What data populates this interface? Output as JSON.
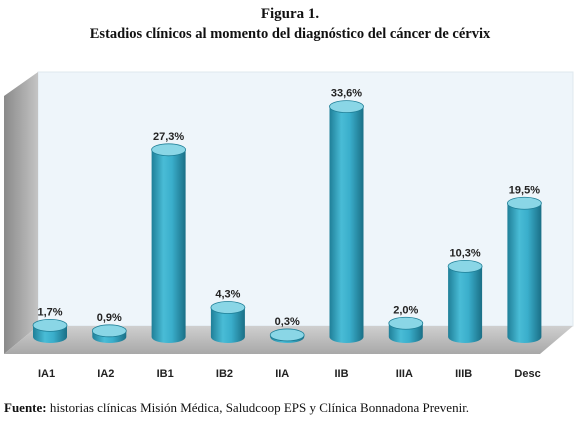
{
  "figure": {
    "title": "Figura 1.",
    "subtitle": "Estadios clínicos al momento del diagnóstico del cáncer de cérvix"
  },
  "source": {
    "label": "Fuente:",
    "text": " historias clínicas Misión Médica, Saludcoop EPS y Clínica Bonnadona Prevenir."
  },
  "colors": {
    "bar": "#3fb3cd",
    "bar_dark": "#1e7e96",
    "bar_top": "#8ad6e6",
    "back_wall": "#eef5fa",
    "floor": "#b8b8b8",
    "side_wall": "#9e9e9e"
  },
  "chart_data": {
    "type": "bar",
    "categories": [
      "IA1",
      "IA2",
      "IB1",
      "IB2",
      "IIA",
      "IIB",
      "IIIA",
      "IIIB",
      "Desc"
    ],
    "values": [
      1.7,
      0.9,
      27.3,
      4.3,
      0.3,
      33.6,
      2.0,
      10.3,
      19.5
    ],
    "value_labels": [
      "1,7%",
      "0,9%",
      "27,3%",
      "4,3%",
      "0,3%",
      "33,6%",
      "2,0%",
      "10,3%",
      "19,5%"
    ],
    "title": "Figura 1.",
    "subtitle": "Estadios clínicos al momento del diagnóstico del cáncer de cérvix",
    "xlabel": "",
    "ylabel": "",
    "ylim": [
      0,
      35
    ],
    "grid": false,
    "legend": "none",
    "style": "3d-cylinder"
  }
}
